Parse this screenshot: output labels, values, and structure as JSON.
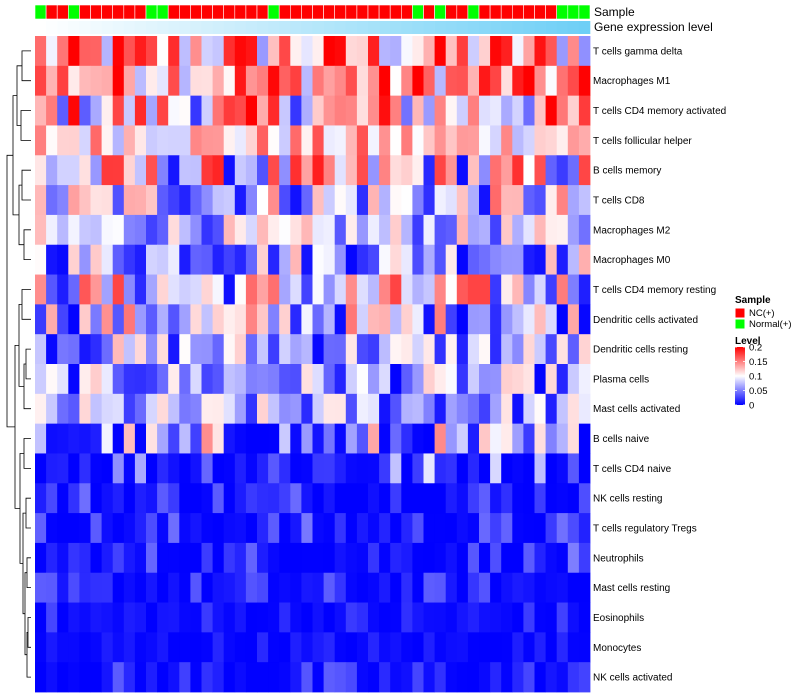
{
  "chart_data": {
    "type": "heatmap",
    "title": "",
    "annotations": {
      "sample_label": "Sample",
      "level_label": "Gene expression level"
    },
    "sample_groups": [
      "Normal(+)",
      "NC(+)",
      "NC(+)",
      "Normal(+)",
      "NC(+)",
      "NC(+)",
      "NC(+)",
      "NC(+)",
      "NC(+)",
      "NC(+)",
      "Normal(+)",
      "Normal(+)",
      "NC(+)",
      "NC(+)",
      "NC(+)",
      "NC(+)",
      "NC(+)",
      "NC(+)",
      "NC(+)",
      "NC(+)",
      "NC(+)",
      "Normal(+)",
      "NC(+)",
      "NC(+)",
      "NC(+)",
      "NC(+)",
      "NC(+)",
      "NC(+)",
      "NC(+)",
      "NC(+)",
      "NC(+)",
      "NC(+)",
      "NC(+)",
      "NC(+)",
      "Normal(+)",
      "NC(+)",
      "Normal(+)",
      "NC(+)",
      "NC(+)",
      "Normal(+)",
      "NC(+)",
      "NC(+)",
      "NC(+)",
      "NC(+)",
      "NC(+)",
      "NC(+)",
      "NC(+)",
      "Normal(+)",
      "Normal(+)",
      "Normal(+)"
    ],
    "level_gradient": [
      "#ffffff",
      "#6ecff6"
    ],
    "rows": [
      "T cells gamma delta",
      "Macrophages M1",
      "T cells CD4 memory activated",
      "T cells follicular helper",
      "B cells memory",
      "T cells CD8",
      "Macrophages M2",
      "Macrophages M0",
      "T cells CD4 memory resting",
      "Dendritic cells activated",
      "Dendritic cells resting",
      "Plasma cells",
      "Mast cells activated",
      "B cells naive",
      "T cells CD4 naive",
      "NK cells resting",
      "T cells regulatory  Tregs",
      "Neutrophils",
      "Mast cells resting",
      "Eosinophils",
      "Monocytes",
      "NK cells activated"
    ],
    "n_columns": 50,
    "row_level_ranges": [
      [
        0.04,
        0.22
      ],
      [
        0.07,
        0.22
      ],
      [
        0.02,
        0.21
      ],
      [
        0.07,
        0.17
      ],
      [
        0.0,
        0.19
      ],
      [
        0.0,
        0.16
      ],
      [
        0.02,
        0.13
      ],
      [
        0.0,
        0.14
      ],
      [
        0.0,
        0.18
      ],
      [
        0.0,
        0.16
      ],
      [
        0.0,
        0.13
      ],
      [
        0.0,
        0.12
      ],
      [
        0.0,
        0.12
      ],
      [
        0.0,
        0.16
      ],
      [
        0.0,
        0.11
      ],
      [
        0.0,
        0.06
      ],
      [
        0.0,
        0.05
      ],
      [
        0.0,
        0.05
      ],
      [
        0.0,
        0.04
      ],
      [
        0.0,
        0.03
      ],
      [
        0.0,
        0.02
      ],
      [
        0.0,
        0.04
      ]
    ],
    "color_scale": {
      "min": 0,
      "mid": 0.1,
      "max": 0.2,
      "low": "#0000ff",
      "mid_color": "#ffffff",
      "high": "#ff0000"
    },
    "legend": {
      "sample_title": "Sample",
      "sample_entries": [
        {
          "label": "NC(+)",
          "color": "#ff0000"
        },
        {
          "label": "Normal(+)",
          "color": "#00ff00"
        }
      ],
      "level_title": "Level",
      "level_ticks": [
        {
          "label": "0.2",
          "value": 0.2
        },
        {
          "label": "0.15",
          "value": 0.15
        },
        {
          "label": "0.1",
          "value": 0.1
        },
        {
          "label": "0.05",
          "value": 0.05
        },
        {
          "label": "0",
          "value": 0
        }
      ],
      "placement": "right"
    },
    "row_dendrogram": true
  }
}
